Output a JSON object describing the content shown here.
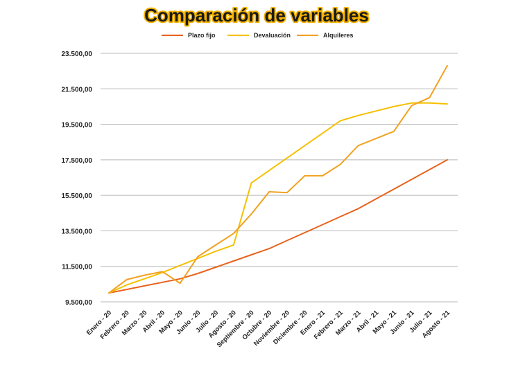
{
  "chart_data": {
    "type": "line",
    "title": "Comparación de variables",
    "xlabel": "",
    "ylabel": "",
    "ylim": [
      9500,
      23500
    ],
    "yticks": [
      9500,
      11500,
      13500,
      15500,
      17500,
      19500,
      21500,
      23500
    ],
    "ytick_labels": [
      "9.500,00",
      "11.500,00",
      "13.500,00",
      "15.500,00",
      "17.500,00",
      "19.500,00",
      "21.500,00",
      "23.500,00"
    ],
    "grid": true,
    "legend_position": "top",
    "categories": [
      "Enero - 20",
      "Febrero - 20",
      "Marzo - 20",
      "Abril - 20",
      "Mayo - 20",
      "Junio - 20",
      "Julio - 20",
      "Agosto - 20",
      "Septiembre - 20",
      "Octubre - 20",
      "Noviembre - 20",
      "Diciembre - 20",
      "Enero - 21",
      "Febrero - 21",
      "Marzo - 21",
      "Abril - 21",
      "Mayo - 21",
      "Junio - 21",
      "Julio - 21",
      "Agosto - 21"
    ],
    "series": [
      {
        "name": "Plazo fijo",
        "color": "#e8621c",
        "values": [
          10000,
          10200,
          10400,
          10600,
          10800,
          11100,
          11450,
          11800,
          12150,
          12500,
          12950,
          13400,
          13850,
          14300,
          14750,
          15300,
          15850,
          16400,
          16950,
          17500
        ]
      },
      {
        "name": "Devaluación",
        "color": "#f5c000",
        "values": [
          10000,
          10450,
          10800,
          11150,
          11550,
          11950,
          12350,
          12700,
          16200,
          16900,
          17600,
          18300,
          19000,
          19700,
          20000,
          20250,
          20500,
          20700,
          20700,
          20650
        ]
      },
      {
        "name": "Alquileres",
        "color": "#f2a121",
        "values": [
          10000,
          10750,
          11000,
          11200,
          10550,
          12050,
          12700,
          13350,
          14450,
          15700,
          15650,
          16600,
          16600,
          17250,
          18300,
          18700,
          19100,
          20550,
          21000,
          22800
        ]
      }
    ]
  }
}
